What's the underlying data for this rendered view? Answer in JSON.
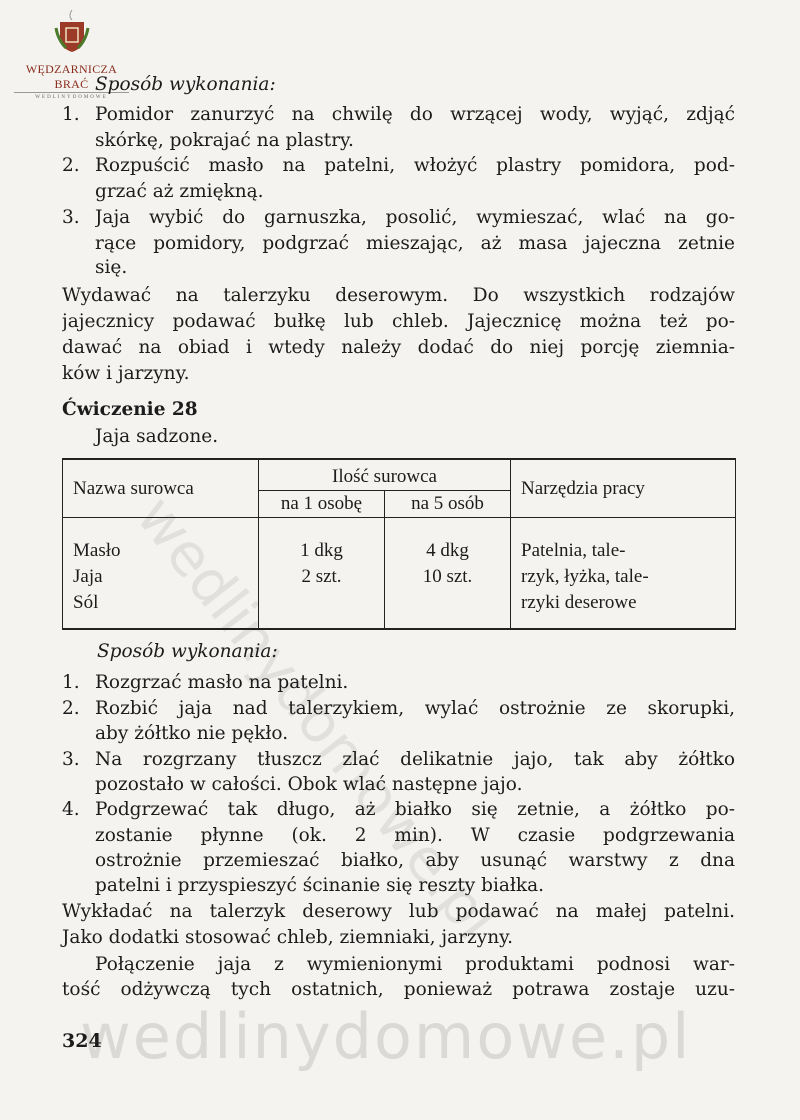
{
  "logo": {
    "name": "WĘDZARNICZA BRAĆ",
    "sub": "WEDLINYDOMOWE"
  },
  "watermark": "wedlinydomowe.pl",
  "section1": {
    "heading": "Sposób wykonania:",
    "items": [
      {
        "num": "1.",
        "lines": [
          "Pomidor zanurzyć na chwilę do wrzącej wody, wyjąć, zdjąć",
          "skórkę, pokrajać na plastry."
        ]
      },
      {
        "num": "2.",
        "lines": [
          "Rozpuścić masło na patelni, włożyć plastry pomidora, pod-",
          "grzać aż zmiękną."
        ]
      },
      {
        "num": "3.",
        "lines": [
          "Jaja wybić do garnuszka, posolić, wymieszać, wlać na go-",
          "rące pomidory, podgrzać mieszając, aż masa jajeczna zetnie",
          "się."
        ]
      }
    ],
    "paragraph": [
      "Wydawać na talerzyku deserowym. Do wszystkich rodzajów",
      "jajecznicy podawać bułkę lub chleb. Jajecznicę można też po-",
      "dawać na obiad i wtedy należy dodać do niej porcję ziemnia-",
      "ków i jarzyny."
    ]
  },
  "exercise": {
    "title": "Ćwiczenie 28",
    "subtitle": "Jaja sadzone."
  },
  "table": {
    "headers": {
      "name": "Nazwa surowca",
      "qty": "Ilość surowca",
      "qty1": "na 1 osobę",
      "qty5": "na 5 osób",
      "tools": "Narzędzia pracy"
    },
    "rows": [
      {
        "name": "Masło",
        "qty1": "1 dkg",
        "qty5": "4 dkg"
      },
      {
        "name": "Jaja",
        "qty1": "2 szt.",
        "qty5": "10 szt."
      },
      {
        "name": "Sól",
        "qty1": "",
        "qty5": ""
      }
    ],
    "tools": [
      "Patelnia, tale-",
      "rzyk, łyżka, tale-",
      "rzyki deserowe"
    ]
  },
  "section2": {
    "heading": "Sposób wykonania:",
    "items": [
      {
        "num": "1.",
        "lines": [
          "Rozgrzać masło na patelni."
        ]
      },
      {
        "num": "2.",
        "lines": [
          "Rozbić jaja nad talerzykiem, wylać ostrożnie ze skorupki,",
          "aby żółtko nie pękło."
        ]
      },
      {
        "num": "3.",
        "lines": [
          "Na rozgrzany tłuszcz zlać delikatnie jajo, tak aby żółtko",
          "pozostało w całości. Obok wlać następne jajo."
        ]
      },
      {
        "num": "4.",
        "lines": [
          "Podgrzewać tak długo, aż białko się zetnie, a żółtko po-",
          "zostanie płynne (ok. 2 min). W czasie podgrzewania",
          "ostrożnie przemieszać białko, aby usunąć warstwy z dna",
          "patelni i przyspieszyć ścinanie się reszty białka."
        ]
      }
    ],
    "paragraph1": [
      "Wykładać na talerzyk deserowy lub podawać na małej patelni.",
      "Jako dodatki stosować chleb, ziemniaki, jarzyny."
    ],
    "paragraph2": [
      "Połączenie jaja z wymienionymi produktami podnosi war-",
      "tość odżywczą tych ostatnich, ponieważ potrawa zostaje uzu-"
    ]
  },
  "page_number": "324"
}
